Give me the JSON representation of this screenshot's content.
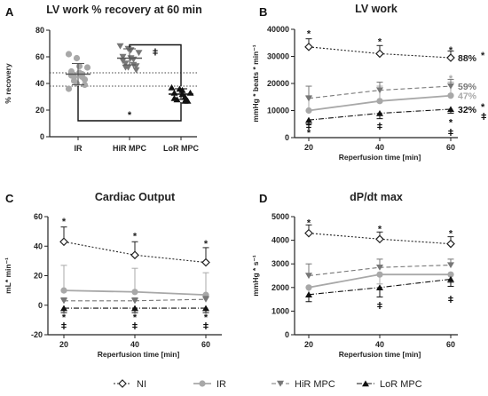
{
  "legend": [
    {
      "name": "NI",
      "color": "#222222",
      "dash": "2,2",
      "marker": "diamond-open"
    },
    {
      "name": "IR",
      "color": "#a8a8a8",
      "dash": "",
      "marker": "circle"
    },
    {
      "name": "HiR MPC",
      "color": "#777777",
      "dash": "5,3",
      "marker": "tri-down"
    },
    {
      "name": "LoR MPC",
      "color": "#111111",
      "dash": "6,2,1,2",
      "marker": "tri-up"
    }
  ],
  "chart_data": [
    {
      "id": "A",
      "panel_label": "A",
      "type": "scatter",
      "title": "LV work % recovery at 60 min",
      "ylabel": "% recovery",
      "xlabel": "",
      "ylim": [
        0,
        80
      ],
      "yticks": [
        0,
        20,
        40,
        60,
        80
      ],
      "categories": [
        "IR",
        "HiR MPC",
        "LoR MPC"
      ],
      "groups": [
        {
          "name": "IR",
          "color": "#a8a8a8",
          "marker": "circle",
          "mean": 47,
          "sd_low": 39,
          "sd_high": 55,
          "points": [
            62,
            59,
            53,
            52,
            49,
            48,
            47,
            46,
            45,
            45,
            43,
            42,
            40,
            39,
            36
          ]
        },
        {
          "name": "HiR MPC",
          "color": "#777777",
          "marker": "tri-down",
          "mean": 59,
          "sd_low": 54,
          "sd_high": 66,
          "points": [
            68,
            66,
            65,
            63,
            60,
            59,
            58,
            57,
            55,
            54,
            53,
            52,
            52,
            50
          ]
        },
        {
          "name": "LoR MPC",
          "color": "#111111",
          "marker": "tri-up",
          "mean": 32,
          "sd_low": 28,
          "sd_high": 36,
          "points": [
            37,
            36,
            35,
            33,
            33,
            32,
            30,
            29,
            28,
            27,
            27
          ]
        }
      ],
      "reference_lines": [
        48,
        38
      ],
      "significance": [
        {
          "from": "HiR MPC",
          "to": "LoR MPC",
          "symbol": "ǂ",
          "y": 69
        },
        {
          "from": "IR",
          "to": "LoR MPC",
          "symbol": "*",
          "y": 12
        }
      ]
    },
    {
      "id": "B",
      "panel_label": "B",
      "type": "line",
      "title": "LV work",
      "ylabel": "mmHg * beats * min⁻¹",
      "xlabel": "Reperfusion time [min]",
      "x": [
        20,
        40,
        60
      ],
      "xlim": [
        20,
        60
      ],
      "ylim": [
        0,
        40000
      ],
      "yticks": [
        0,
        10000,
        20000,
        30000,
        40000
      ],
      "series": [
        {
          "name": "NI",
          "values": [
            33500,
            31000,
            29500
          ],
          "err": [
            3000,
            3000,
            2500
          ],
          "err_dir": "up"
        },
        {
          "name": "IR",
          "values": [
            10000,
            13500,
            15500
          ],
          "err": [
            5500,
            5500,
            5000
          ],
          "err_dir": "up"
        },
        {
          "name": "HiR MPC",
          "values": [
            14500,
            17500,
            19000
          ],
          "err": [
            4500,
            3000,
            2500
          ],
          "err_dir": "up"
        },
        {
          "name": "LoR MPC",
          "values": [
            6500,
            9000,
            10500
          ],
          "err": [
            1500,
            2000,
            1500
          ],
          "err_dir": "down"
        }
      ],
      "annotations": [
        {
          "x": 20,
          "y": 38500,
          "text": "*",
          "color": "#222222"
        },
        {
          "x": 40,
          "y": 35500,
          "text": "*",
          "color": "#222222"
        },
        {
          "x": 60,
          "y": 32500,
          "text": "*",
          "color": "#222222"
        },
        {
          "x": 60,
          "y": 22000,
          "text": "*",
          "color": "#a8a8a8"
        },
        {
          "x": 20,
          "y": 4200,
          "text": "ǂ",
          "color": "#111111"
        },
        {
          "x": 20,
          "y": 2000,
          "text": "*",
          "color": "#111111"
        },
        {
          "x": 40,
          "y": 4200,
          "text": "ǂ",
          "color": "#111111"
        },
        {
          "x": 60,
          "y": 5800,
          "text": "*",
          "color": "#111111"
        },
        {
          "x": 60,
          "y": 2000,
          "text": "ǂ",
          "color": "#111111"
        }
      ],
      "end_labels": [
        {
          "series": "NI",
          "text": "88%",
          "color": "#222222",
          "star": "*"
        },
        {
          "series": "HiR MPC",
          "text": "59%",
          "color": "#777777",
          "star": ""
        },
        {
          "series": "IR",
          "text": "47%",
          "color": "#a8a8a8",
          "star": ""
        },
        {
          "series": "LoR MPC",
          "text": "32%",
          "color": "#111111",
          "star": "*",
          "star2": "ǂ"
        }
      ]
    },
    {
      "id": "C",
      "panel_label": "C",
      "type": "line",
      "title": "Cardiac Output",
      "ylabel": "mL* min⁻¹",
      "xlabel": "Reperfusion time [min]",
      "x": [
        20,
        40,
        60
      ],
      "xlim": [
        20,
        60
      ],
      "ylim": [
        -20,
        60
      ],
      "yticks": [
        -20,
        0,
        20,
        40,
        60
      ],
      "series": [
        {
          "name": "NI",
          "values": [
            43,
            34,
            29
          ],
          "err": [
            10,
            9,
            10
          ],
          "err_dir": "up"
        },
        {
          "name": "IR",
          "values": [
            10,
            9,
            7
          ],
          "err": [
            17,
            16,
            15
          ],
          "err_dir": "up"
        },
        {
          "name": "HiR MPC",
          "values": [
            3,
            3,
            4
          ],
          "err": [
            2,
            2,
            2
          ],
          "err_dir": "up"
        },
        {
          "name": "LoR MPC",
          "values": [
            -2,
            -2,
            -2
          ],
          "err": [
            3,
            3,
            3
          ],
          "err_dir": "down"
        }
      ],
      "annotations": [
        {
          "x": 20,
          "y": 57,
          "text": "*",
          "color": "#222222"
        },
        {
          "x": 40,
          "y": 47,
          "text": "*",
          "color": "#222222"
        },
        {
          "x": 60,
          "y": 42,
          "text": "*",
          "color": "#222222"
        },
        {
          "x": 20,
          "y": -8,
          "text": "*",
          "color": "#111111"
        },
        {
          "x": 20,
          "y": -14,
          "text": "ǂ",
          "color": "#111111"
        },
        {
          "x": 40,
          "y": -8,
          "text": "*",
          "color": "#111111"
        },
        {
          "x": 40,
          "y": -14,
          "text": "ǂ",
          "color": "#111111"
        },
        {
          "x": 60,
          "y": -8,
          "text": "*",
          "color": "#111111"
        },
        {
          "x": 60,
          "y": -14,
          "text": "ǂ",
          "color": "#111111"
        }
      ]
    },
    {
      "id": "D",
      "panel_label": "D",
      "type": "line",
      "title": "dP/dt max",
      "ylabel": "mmHg * s⁻¹",
      "xlabel": "Reperfusion time [min]",
      "x": [
        20,
        40,
        60
      ],
      "xlim": [
        20,
        60
      ],
      "ylim": [
        0,
        5000
      ],
      "yticks": [
        0,
        1000,
        2000,
        3000,
        4000,
        5000
      ],
      "series": [
        {
          "name": "NI",
          "values": [
            4300,
            4050,
            3850
          ],
          "err": [
            350,
            300,
            300
          ],
          "err_dir": "up"
        },
        {
          "name": "IR",
          "values": [
            2000,
            2550,
            2550
          ],
          "err": [
            400,
            400,
            350
          ],
          "err_dir": "down"
        },
        {
          "name": "HiR MPC",
          "values": [
            2500,
            2850,
            2950
          ],
          "err": [
            500,
            350,
            250
          ],
          "err_dir": "up"
        },
        {
          "name": "LoR MPC",
          "values": [
            1700,
            2000,
            2350
          ],
          "err": [
            300,
            400,
            300
          ],
          "err_dir": "down"
        }
      ],
      "annotations": [
        {
          "x": 20,
          "y": 4750,
          "text": "*",
          "color": "#222222"
        },
        {
          "x": 40,
          "y": 4500,
          "text": "*",
          "color": "#222222"
        },
        {
          "x": 60,
          "y": 4300,
          "text": "*",
          "color": "#222222"
        },
        {
          "x": 40,
          "y": 1250,
          "text": "ǂ",
          "color": "#111111"
        },
        {
          "x": 60,
          "y": 1500,
          "text": "ǂ",
          "color": "#111111"
        }
      ]
    }
  ]
}
